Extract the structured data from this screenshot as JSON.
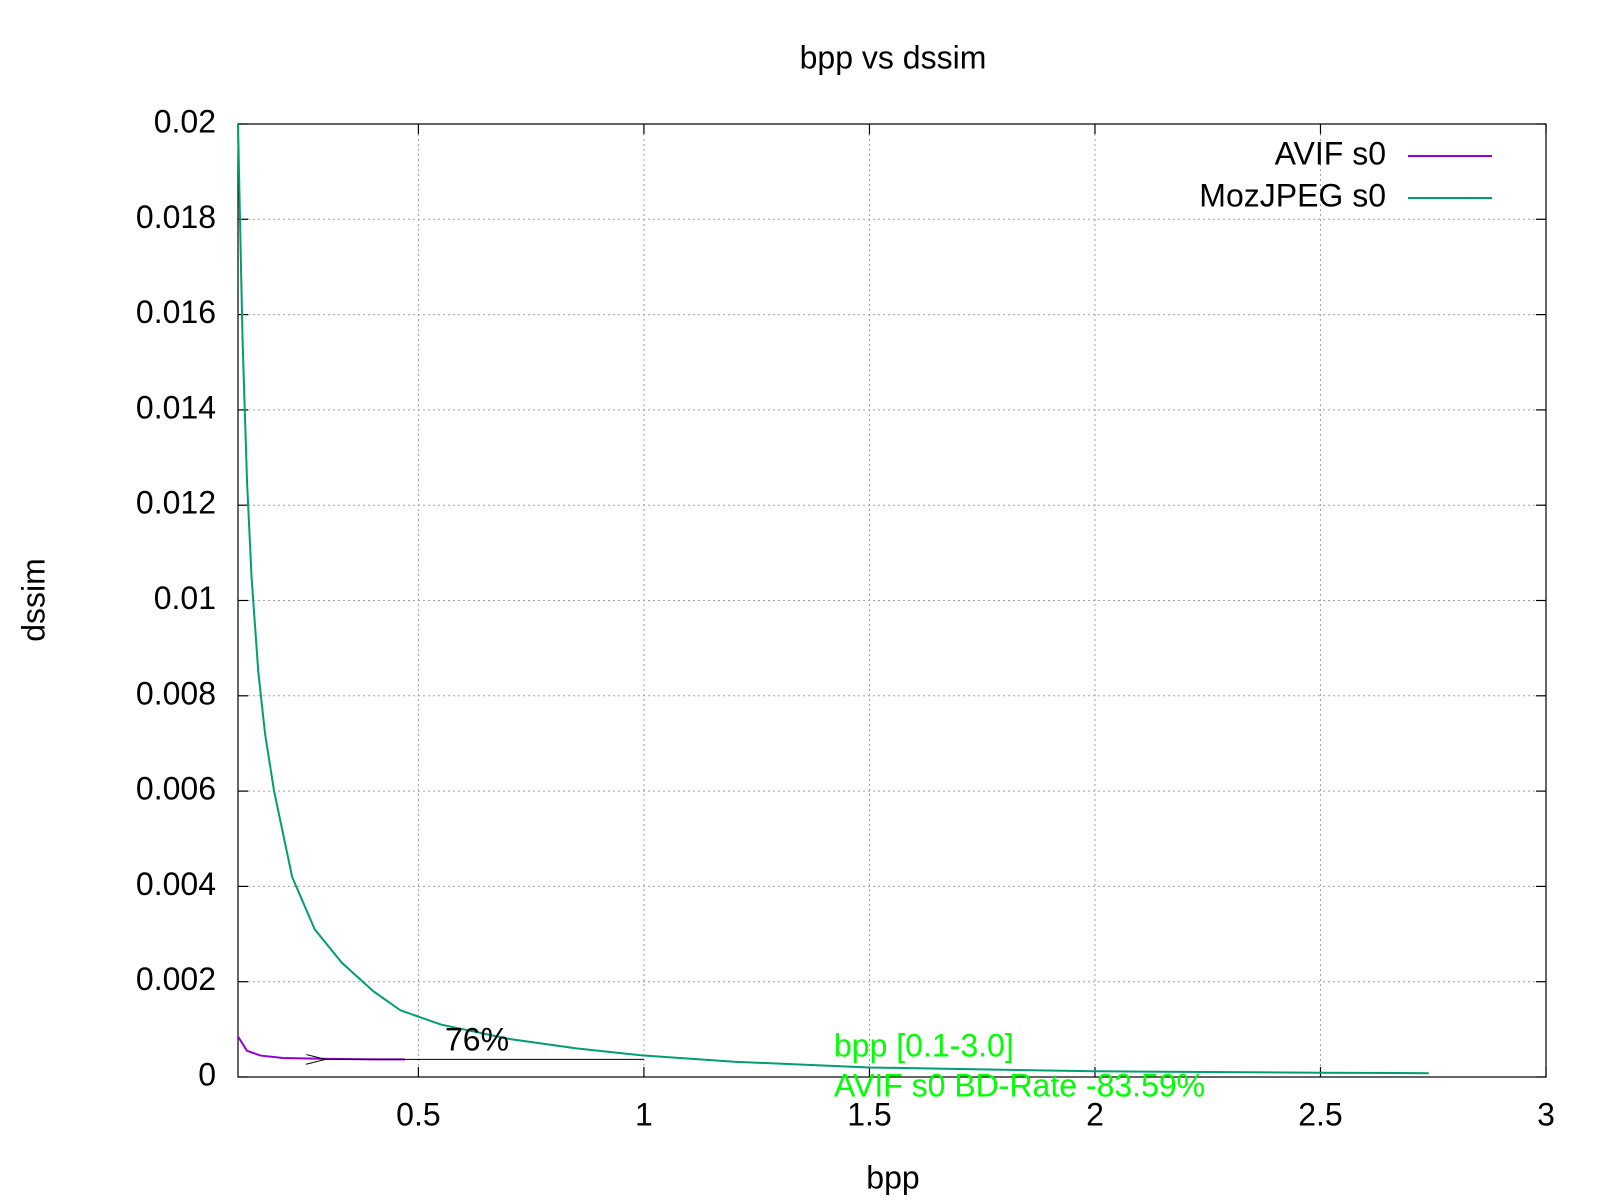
{
  "chart_data": {
    "type": "line",
    "title": "bpp vs dssim",
    "xlabel": "bpp",
    "ylabel": "dssim",
    "xlim": [
      0.1,
      3
    ],
    "xticks": [
      0.5,
      1,
      1.5,
      2,
      2.5,
      3
    ],
    "ylim": [
      0,
      0.02
    ],
    "yticks": [
      0,
      0.002,
      0.004,
      0.006,
      0.008,
      0.01,
      0.012,
      0.014,
      0.016,
      0.018,
      0.02
    ],
    "grid": true,
    "legend": "top-right",
    "series": [
      {
        "name": "AVIF s0",
        "color": "#9400d3",
        "x": [
          0.1,
          0.12,
          0.15,
          0.2,
          0.3,
          0.4,
          0.47
        ],
        "values": [
          0.00085,
          0.00055,
          0.00045,
          0.0004,
          0.00038,
          0.00037,
          0.00037
        ]
      },
      {
        "name": "MozJPEG s0",
        "color": "#009e73",
        "x": [
          0.1,
          0.11,
          0.12,
          0.13,
          0.145,
          0.16,
          0.18,
          0.22,
          0.27,
          0.33,
          0.4,
          0.46,
          0.55,
          0.7,
          0.85,
          1.0,
          1.2,
          1.5,
          2.0,
          2.5,
          2.74
        ],
        "values": [
          0.02,
          0.0155,
          0.0125,
          0.0105,
          0.0085,
          0.0072,
          0.006,
          0.0042,
          0.0031,
          0.0024,
          0.0018,
          0.0014,
          0.0011,
          0.0008,
          0.0006,
          0.00045,
          0.00032,
          0.0002,
          0.00012,
          9e-05,
          8e-05
        ]
      }
    ],
    "annotations": [
      {
        "text": "76%",
        "arrow_from": [
          1.0,
          0.00037
        ],
        "arrow_to": [
          0.25,
          0.00037
        ]
      },
      {
        "text": "bpp [0.1-3.0]",
        "color": "#00ff00"
      },
      {
        "text": "AVIF s0 BD-Rate -83.59%",
        "color": "#00ff00"
      }
    ]
  }
}
